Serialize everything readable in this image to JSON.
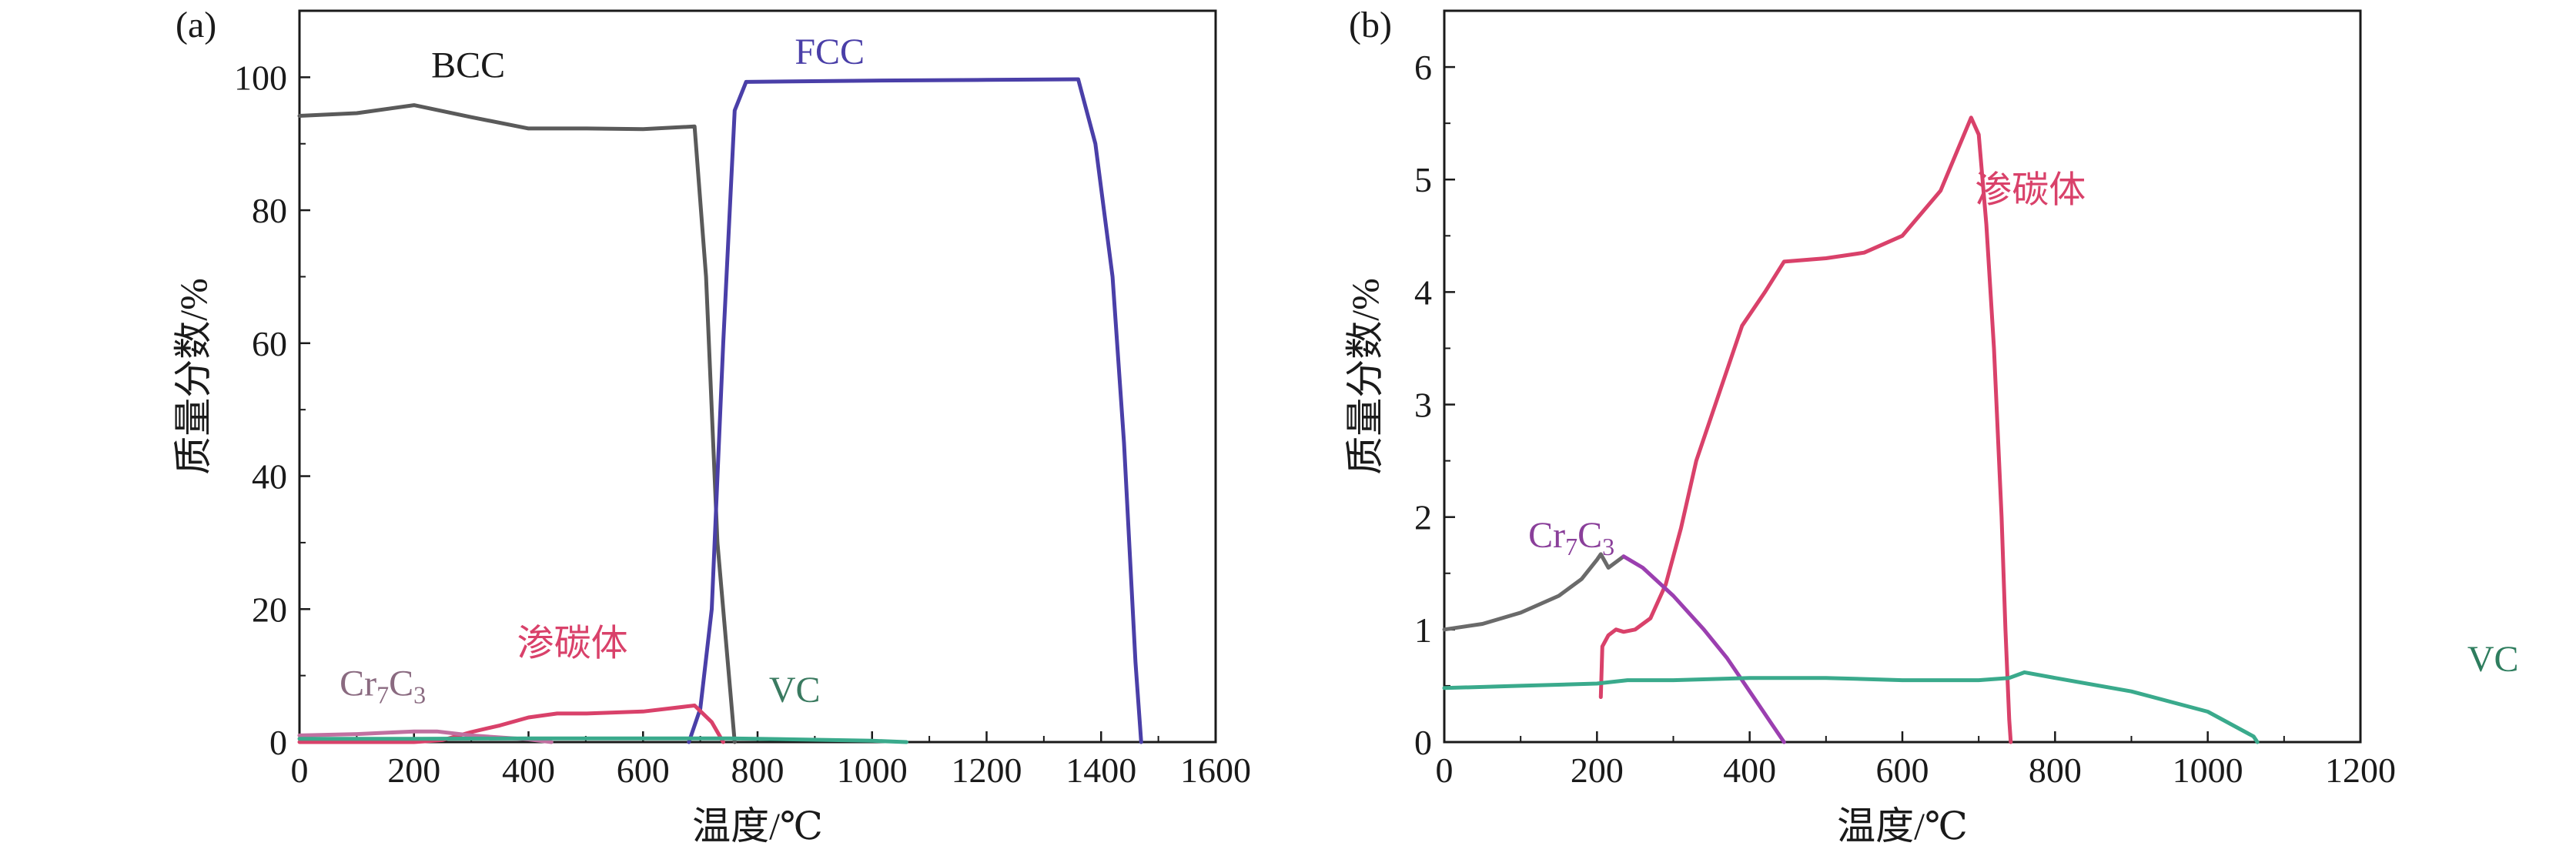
{
  "colors": {
    "BCC": "#5a5a5a",
    "FCC": "#4a3fa8",
    "cementite": "#d9416a",
    "Cr7C3_a": "#c070a0",
    "Cr7C3_b_grey": "#6a6a6a",
    "Cr7C3_b_purple": "#9b3fb0",
    "VC": "#3aaa8c",
    "VC_label_a": "#3a7a60",
    "VC_label_b": "#2e7d5e",
    "Cr7C3_label_a": "#8a6a80",
    "Cr7C3_label_b": "#8a3f9a",
    "FCC_label": "#4a3fa8",
    "cementite_label": "#d9416a",
    "BCC_label": "#1a1a1a"
  },
  "chart_data": [
    {
      "panel_label": "(a)",
      "type": "line",
      "xlabel": "温度/℃",
      "ylabel": "质量分数/%",
      "xlim": [
        0,
        1600
      ],
      "ylim": [
        0,
        110
      ],
      "xticks": [
        "0",
        "200",
        "400",
        "600",
        "800",
        "1000",
        "1200",
        "1400",
        "1600"
      ],
      "yticks": [
        "0",
        "20",
        "40",
        "60",
        "80",
        "100"
      ],
      "series": [
        {
          "name": "BCC",
          "color_key": "BCC",
          "x": [
            0,
            100,
            200,
            300,
            400,
            500,
            600,
            690,
            710,
            730,
            760
          ],
          "y": [
            94.2,
            94.6,
            95.8,
            94.0,
            92.3,
            92.3,
            92.2,
            92.6,
            70,
            30,
            0
          ]
        },
        {
          "name": "FCC",
          "color_key": "FCC",
          "x": [
            680,
            700,
            720,
            740,
            760,
            780,
            1000,
            1200,
            1360,
            1390,
            1420,
            1440,
            1460,
            1470
          ],
          "y": [
            0,
            5,
            20,
            60,
            95,
            99.3,
            99.5,
            99.6,
            99.7,
            90,
            70,
            45,
            12,
            0
          ]
        },
        {
          "name": "渗碳体",
          "color_key": "cementite",
          "x": [
            0,
            200,
            250,
            300,
            350,
            400,
            450,
            500,
            600,
            690,
            720,
            740
          ],
          "y": [
            0,
            0,
            0.3,
            1.5,
            2.5,
            3.7,
            4.3,
            4.3,
            4.6,
            5.5,
            3.0,
            0
          ]
        },
        {
          "name": "Cr7C3",
          "color_key": "Cr7C3_a",
          "x": [
            0,
            100,
            200,
            240,
            300,
            400,
            440
          ],
          "y": [
            1.0,
            1.2,
            1.6,
            1.6,
            1.0,
            0.4,
            0
          ]
        },
        {
          "name": "VC",
          "color_key": "VC",
          "x": [
            0,
            200,
            400,
            600,
            750,
            800,
            1000,
            1060
          ],
          "y": [
            0.5,
            0.5,
            0.55,
            0.55,
            0.55,
            0.5,
            0.2,
            0
          ]
        }
      ],
      "labels": [
        {
          "text": "BCC",
          "color_key": "BCC_label",
          "x": 230,
          "y": 100
        },
        {
          "text": "FCC",
          "color_key": "FCC_label",
          "x": 865,
          "y": 102
        },
        {
          "text": "渗碳体",
          "color_key": "cementite_label",
          "x": 380,
          "y": 13
        },
        {
          "text": "VC",
          "color_key": "VC_label_a",
          "x": 820,
          "y": 6
        },
        {
          "text_main": "Cr",
          "text_sub1": "7",
          "text_mid": "C",
          "text_sub2": "3",
          "color_key": "Cr7C3_label_a",
          "x": 70,
          "y": 7
        }
      ]
    },
    {
      "panel_label": "(b)",
      "type": "line",
      "xlabel": "温度/℃",
      "ylabel": "质量分数/%",
      "xlim": [
        0,
        1200
      ],
      "ylim": [
        0,
        6.5
      ],
      "xticks": [
        "0",
        "200",
        "400",
        "600",
        "800",
        "1000",
        "1200"
      ],
      "yticks": [
        "0",
        "1",
        "2",
        "3",
        "4",
        "5",
        "6"
      ],
      "series": [
        {
          "name": "渗碳体",
          "color_key": "cementite",
          "x": [
            205,
            207,
            215,
            225,
            235,
            250,
            270,
            290,
            310,
            330,
            360,
            390,
            420,
            445,
            500,
            550,
            600,
            650,
            690,
            700,
            710,
            720,
            730,
            735,
            740,
            742
          ],
          "y": [
            0.4,
            0.85,
            0.95,
            1.0,
            0.98,
            1.0,
            1.1,
            1.4,
            1.9,
            2.5,
            3.1,
            3.7,
            4.0,
            4.27,
            4.3,
            4.35,
            4.5,
            4.9,
            5.55,
            5.4,
            4.6,
            3.5,
            2.0,
            1.0,
            0.2,
            0
          ]
        },
        {
          "name": "Cr7C3",
          "color_key": "Cr7C3_b_grey",
          "x": [
            0,
            50,
            100,
            150,
            180,
            200,
            205,
            215,
            235
          ],
          "y": [
            1.0,
            1.05,
            1.15,
            1.3,
            1.45,
            1.62,
            1.67,
            1.55,
            1.65
          ]
        },
        {
          "name": "Cr7C3",
          "color_key": "Cr7C3_b_purple",
          "x": [
            235,
            260,
            300,
            340,
            370,
            390,
            410,
            430,
            445
          ],
          "y": [
            1.65,
            1.55,
            1.3,
            1.0,
            0.75,
            0.55,
            0.35,
            0.15,
            0
          ]
        },
        {
          "name": "VC",
          "color_key": "VC",
          "x": [
            0,
            100,
            200,
            240,
            300,
            400,
            500,
            600,
            700,
            740,
            760,
            800,
            900,
            1000,
            1060,
            1065
          ],
          "y": [
            0.48,
            0.5,
            0.52,
            0.55,
            0.55,
            0.57,
            0.57,
            0.55,
            0.55,
            0.57,
            0.62,
            0.57,
            0.45,
            0.27,
            0.05,
            0
          ]
        }
      ],
      "labels": [
        {
          "text": "渗碳体",
          "color_key": "cementite_label",
          "x": 695,
          "y": 4.8
        },
        {
          "text": "VC",
          "color_key": "VC_label_b",
          "x": 1340,
          "y": 0.63
        },
        {
          "text_main": "Cr",
          "text_sub1": "7",
          "text_mid": "C",
          "text_sub2": "3",
          "color_key": "Cr7C3_label_b",
          "x": 110,
          "y": 1.73
        }
      ]
    }
  ]
}
